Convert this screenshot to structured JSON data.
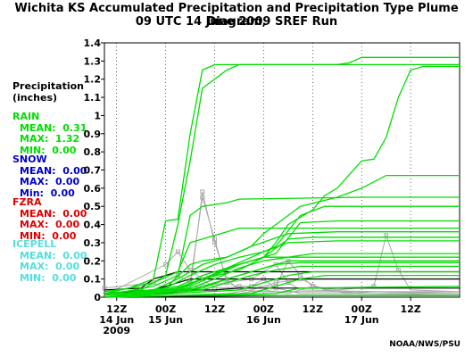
{
  "title_line1": "Wichita KS Accumulated Precipitation and Precipitation Type Plume Diagram,",
  "title_line2": "09 UTC 14 June 2009 SREF Run",
  "ylabel_line1": "Precipitation",
  "ylabel_line2": "(inches)",
  "credit": "NOAA/NWS/PSU",
  "colors": {
    "rain": "#00dd00",
    "snow": "#0000cc",
    "fzra": "#dd0000",
    "icepell": "#55dddd",
    "gray": "#aaaaaa",
    "black": "#000000"
  },
  "legend": {
    "rain": {
      "label": "RAIN",
      "mean": "MEAN:  0.31",
      "max": "MAX:  1.32",
      "min": "MIN:  0.00"
    },
    "snow": {
      "label": "SNOW",
      "mean": "MEAN:  0.00",
      "max": "MAX:  0.00",
      "min": "Min:  0.00"
    },
    "fzra": {
      "label": "FZRA",
      "mean": "MEAN:  0.00",
      "max": "MAX:  0.00",
      "min": "MIN:  0.00"
    },
    "icepell": {
      "label": "ICEPELL",
      "mean": "MEAN:  0.00",
      "max": "MAX:  0.00",
      "min": "MIN:  0.00"
    }
  },
  "chart_data": {
    "type": "line",
    "x_unit": "forecast hour from 09 UTC 14 Jun 2009",
    "xlim": [
      0,
      87
    ],
    "ylim": [
      0,
      1.4
    ],
    "y_ticks": [
      0,
      0.1,
      0.2,
      0.3,
      0.4,
      0.5,
      0.6,
      0.7,
      0.8,
      0.9,
      1,
      1.1,
      1.2,
      1.3,
      1.4
    ],
    "x_ticks": [
      {
        "x": 3,
        "l1": "12Z",
        "l2": "14 Jun",
        "l3": "2009"
      },
      {
        "x": 15,
        "l1": "00Z",
        "l2": "15 Jun",
        "l3": ""
      },
      {
        "x": 27,
        "l1": "12Z",
        "l2": "",
        "l3": ""
      },
      {
        "x": 39,
        "l1": "00Z",
        "l2": "16 Jun",
        "l3": ""
      },
      {
        "x": 51,
        "l1": "12Z",
        "l2": "",
        "l3": ""
      },
      {
        "x": 63,
        "l1": "00Z",
        "l2": "17 Jun",
        "l3": ""
      },
      {
        "x": 75,
        "l1": "12Z",
        "l2": "",
        "l3": ""
      }
    ],
    "grid": "dotted vertical lines at 00Z and 12Z",
    "rain_series": [
      [
        [
          0,
          0.03
        ],
        [
          6,
          0.05
        ],
        [
          12,
          0.1
        ],
        [
          15,
          0.42
        ],
        [
          18,
          0.43
        ],
        [
          21,
          0.9
        ],
        [
          24,
          1.25
        ],
        [
          27,
          1.28
        ],
        [
          48,
          1.28
        ],
        [
          57,
          1.28
        ],
        [
          60,
          1.29
        ],
        [
          63,
          1.32
        ],
        [
          87,
          1.32
        ]
      ],
      [
        [
          0,
          0.02
        ],
        [
          9,
          0.04
        ],
        [
          15,
          0.12
        ],
        [
          18,
          0.4
        ],
        [
          21,
          0.75
        ],
        [
          24,
          1.15
        ],
        [
          27,
          1.2
        ],
        [
          30,
          1.25
        ],
        [
          33,
          1.28
        ],
        [
          87,
          1.28
        ]
      ],
      [
        [
          0,
          0.01
        ],
        [
          12,
          0.06
        ],
        [
          18,
          0.12
        ],
        [
          21,
          0.45
        ],
        [
          24,
          0.5
        ],
        [
          30,
          0.52
        ],
        [
          33,
          0.54
        ],
        [
          63,
          0.55
        ],
        [
          87,
          0.55
        ]
      ],
      [
        [
          0,
          0.02
        ],
        [
          12,
          0.08
        ],
        [
          18,
          0.14
        ],
        [
          21,
          0.3
        ],
        [
          27,
          0.34
        ],
        [
          30,
          0.36
        ],
        [
          33,
          0.38
        ],
        [
          87,
          0.38
        ]
      ],
      [
        [
          0,
          0.0
        ],
        [
          12,
          0.04
        ],
        [
          18,
          0.1
        ],
        [
          24,
          0.18
        ],
        [
          30,
          0.22
        ],
        [
          36,
          0.28
        ],
        [
          39,
          0.35
        ],
        [
          42,
          0.4
        ],
        [
          48,
          0.5
        ],
        [
          57,
          0.55
        ],
        [
          63,
          0.6
        ],
        [
          69,
          0.67
        ],
        [
          75,
          0.67
        ],
        [
          87,
          0.67
        ]
      ],
      [
        [
          0,
          0.0
        ],
        [
          15,
          0.03
        ],
        [
          24,
          0.1
        ],
        [
          33,
          0.15
        ],
        [
          39,
          0.22
        ],
        [
          42,
          0.3
        ],
        [
          45,
          0.4
        ],
        [
          51,
          0.48
        ],
        [
          54,
          0.56
        ],
        [
          57,
          0.6
        ],
        [
          63,
          0.75
        ],
        [
          66,
          0.76
        ],
        [
          69,
          0.88
        ],
        [
          72,
          1.1
        ],
        [
          75,
          1.25
        ],
        [
          78,
          1.27
        ],
        [
          87,
          1.27
        ]
      ],
      [
        [
          0,
          0.01
        ],
        [
          15,
          0.05
        ],
        [
          21,
          0.18
        ],
        [
          24,
          0.2
        ],
        [
          30,
          0.22
        ],
        [
          36,
          0.28
        ],
        [
          45,
          0.35
        ],
        [
          57,
          0.36
        ],
        [
          87,
          0.36
        ]
      ],
      [
        [
          0,
          0.0
        ],
        [
          18,
          0.05
        ],
        [
          24,
          0.1
        ],
        [
          33,
          0.18
        ],
        [
          39,
          0.22
        ],
        [
          45,
          0.32
        ],
        [
          51,
          0.33
        ],
        [
          87,
          0.33
        ]
      ],
      [
        [
          0,
          0.0
        ],
        [
          15,
          0.05
        ],
        [
          21,
          0.12
        ],
        [
          27,
          0.18
        ],
        [
          33,
          0.22
        ],
        [
          39,
          0.25
        ],
        [
          45,
          0.3
        ],
        [
          57,
          0.31
        ],
        [
          87,
          0.31
        ]
      ],
      [
        [
          0,
          0.0
        ],
        [
          18,
          0.04
        ],
        [
          24,
          0.1
        ],
        [
          30,
          0.16
        ],
        [
          36,
          0.22
        ],
        [
          42,
          0.28
        ],
        [
          48,
          0.45
        ],
        [
          54,
          0.5
        ],
        [
          87,
          0.5
        ]
      ],
      [
        [
          0,
          0.0
        ],
        [
          18,
          0.06
        ],
        [
          24,
          0.12
        ],
        [
          30,
          0.16
        ],
        [
          36,
          0.2
        ],
        [
          42,
          0.24
        ],
        [
          48,
          0.41
        ],
        [
          57,
          0.42
        ],
        [
          87,
          0.42
        ]
      ],
      [
        [
          0,
          0.0
        ],
        [
          21,
          0.05
        ],
        [
          27,
          0.1
        ],
        [
          33,
          0.16
        ],
        [
          39,
          0.2
        ],
        [
          45,
          0.22
        ],
        [
          51,
          0.24
        ],
        [
          87,
          0.24
        ]
      ],
      [
        [
          0,
          0.0
        ],
        [
          21,
          0.06
        ],
        [
          27,
          0.12
        ],
        [
          33,
          0.18
        ],
        [
          39,
          0.22
        ],
        [
          87,
          0.22
        ]
      ],
      [
        [
          0,
          0.0
        ],
        [
          21,
          0.04
        ],
        [
          27,
          0.08
        ],
        [
          33,
          0.12
        ],
        [
          39,
          0.16
        ],
        [
          45,
          0.2
        ],
        [
          87,
          0.2
        ]
      ],
      [
        [
          0,
          0.0
        ],
        [
          24,
          0.04
        ],
        [
          30,
          0.08
        ],
        [
          36,
          0.12
        ],
        [
          42,
          0.15
        ],
        [
          48,
          0.17
        ],
        [
          87,
          0.17
        ]
      ],
      [
        [
          0,
          0.0
        ],
        [
          24,
          0.05
        ],
        [
          30,
          0.1
        ],
        [
          36,
          0.14
        ],
        [
          42,
          0.18
        ],
        [
          48,
          0.19
        ],
        [
          87,
          0.19
        ]
      ],
      [
        [
          0,
          0.0
        ],
        [
          33,
          0.04
        ],
        [
          39,
          0.08
        ],
        [
          45,
          0.12
        ],
        [
          51,
          0.14
        ],
        [
          87,
          0.14
        ]
      ],
      [
        [
          0,
          0.0
        ],
        [
          36,
          0.02
        ],
        [
          42,
          0.06
        ],
        [
          48,
          0.1
        ],
        [
          54,
          0.12
        ],
        [
          87,
          0.12
        ]
      ],
      [
        [
          0,
          0.0
        ],
        [
          42,
          0.02
        ],
        [
          48,
          0.05
        ],
        [
          87,
          0.06
        ]
      ],
      [
        [
          0,
          0.0
        ],
        [
          18,
          0.01
        ],
        [
          87,
          0.01
        ]
      ]
    ],
    "gray_series": [
      [
        [
          0,
          0.02
        ],
        [
          9,
          0.04
        ],
        [
          15,
          0.02
        ],
        [
          21,
          0.04
        ],
        [
          24,
          0.58
        ],
        [
          27,
          0.3
        ],
        [
          30,
          0.1
        ],
        [
          33,
          0.04
        ],
        [
          39,
          0.03
        ],
        [
          87,
          0.03
        ]
      ],
      [
        [
          0,
          0.05
        ],
        [
          12,
          0.08
        ],
        [
          15,
          0.05
        ],
        [
          18,
          0.12
        ],
        [
          21,
          0.08
        ],
        [
          24,
          0.55
        ],
        [
          27,
          0.32
        ],
        [
          30,
          0.08
        ],
        [
          36,
          0.03
        ],
        [
          87,
          0.03
        ]
      ],
      [
        [
          0,
          0.01
        ],
        [
          15,
          0.18
        ],
        [
          18,
          0.25
        ],
        [
          21,
          0.15
        ],
        [
          24,
          0.1
        ],
        [
          27,
          0.05
        ],
        [
          36,
          0.06
        ],
        [
          39,
          0.1
        ],
        [
          42,
          0.05
        ],
        [
          48,
          0.02
        ],
        [
          87,
          0.02
        ]
      ],
      [
        [
          0,
          0.0
        ],
        [
          24,
          0.06
        ],
        [
          30,
          0.08
        ],
        [
          36,
          0.1
        ],
        [
          42,
          0.18
        ],
        [
          45,
          0.08
        ],
        [
          48,
          0.04
        ],
        [
          87,
          0.02
        ]
      ],
      [
        [
          0,
          0.0
        ],
        [
          27,
          0.04
        ],
        [
          33,
          0.06
        ],
        [
          42,
          0.06
        ],
        [
          45,
          0.2
        ],
        [
          48,
          0.12
        ],
        [
          51,
          0.06
        ],
        [
          57,
          0.04
        ],
        [
          66,
          0.06
        ],
        [
          69,
          0.34
        ],
        [
          72,
          0.15
        ],
        [
          75,
          0.04
        ],
        [
          87,
          0.03
        ]
      ],
      [
        [
          0,
          0.0
        ],
        [
          30,
          0.02
        ],
        [
          36,
          0.04
        ],
        [
          42,
          0.08
        ],
        [
          48,
          0.1
        ],
        [
          54,
          0.04
        ],
        [
          60,
          0.02
        ],
        [
          66,
          0.03
        ],
        [
          87,
          0.02
        ]
      ],
      [
        [
          0,
          0.0
        ],
        [
          33,
          0.02
        ],
        [
          39,
          0.04
        ],
        [
          45,
          0.02
        ],
        [
          51,
          0.06
        ],
        [
          57,
          0.03
        ],
        [
          63,
          0.02
        ],
        [
          87,
          0.01
        ]
      ]
    ],
    "black_series": [
      [
        [
          0,
          0.04
        ],
        [
          9,
          0.05
        ],
        [
          12,
          0.1
        ],
        [
          15,
          0.12
        ],
        [
          18,
          0.14
        ],
        [
          87,
          0.14
        ]
      ],
      [
        [
          0,
          0.02
        ],
        [
          12,
          0.04
        ],
        [
          15,
          0.06
        ],
        [
          21,
          0.1
        ],
        [
          87,
          0.1
        ]
      ],
      [
        [
          0,
          0.0
        ],
        [
          15,
          0.02
        ],
        [
          21,
          0.04
        ],
        [
          27,
          0.04
        ],
        [
          33,
          0.05
        ],
        [
          87,
          0.05
        ]
      ],
      [
        [
          0,
          0.0
        ],
        [
          45,
          0.01
        ],
        [
          87,
          0.01
        ]
      ]
    ]
  }
}
